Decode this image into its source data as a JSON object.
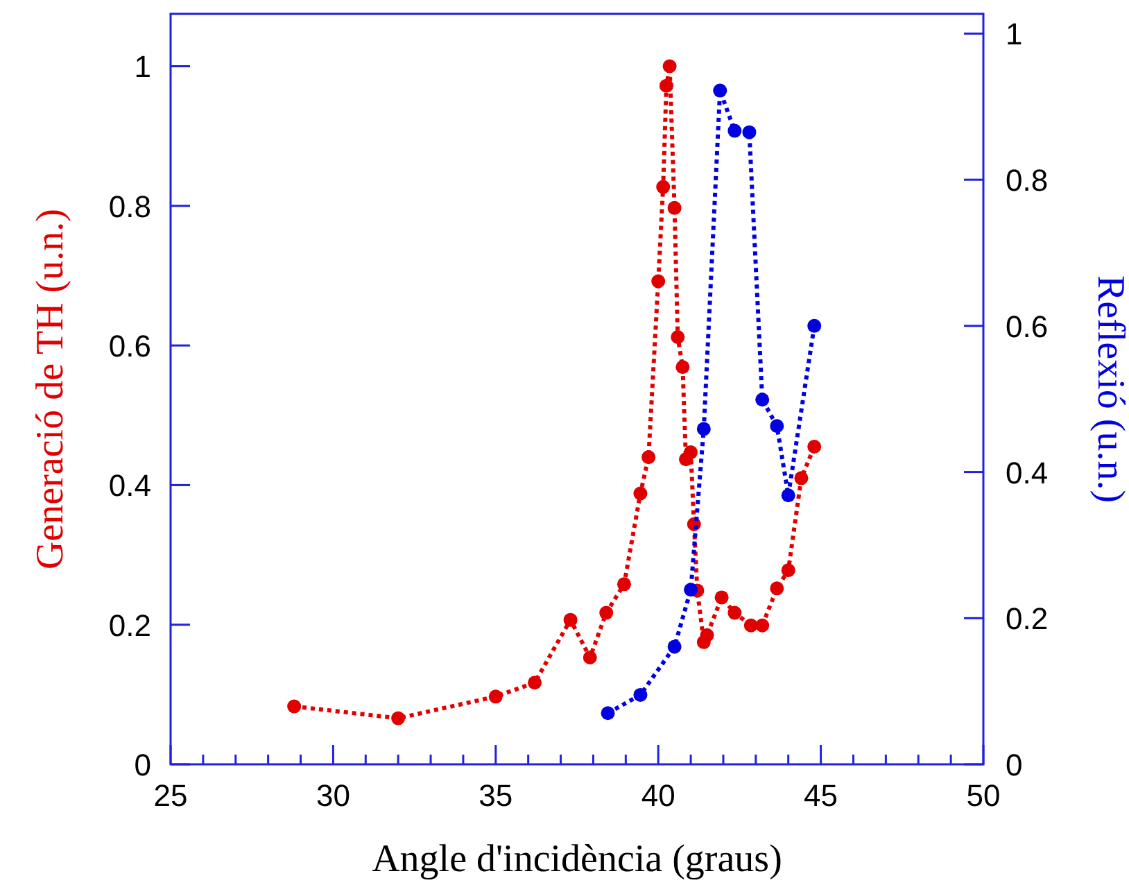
{
  "chart_data": {
    "type": "line",
    "xlabel": "Angle d'incidència (graus)",
    "ylabel": "Generació de TH (u.n.)",
    "y2label": "Reflexió (u.n.)",
    "xlim": [
      25,
      50
    ],
    "xticks": [
      25,
      {
        "value": 26,
        "label": null
      },
      {
        "value": 27,
        "label": null
      },
      {
        "value": 28,
        "label": null
      },
      {
        "value": 29,
        "label": null
      },
      30,
      {
        "value": 31,
        "label": null
      },
      {
        "value": 32,
        "label": null
      },
      {
        "value": 33,
        "label": null
      },
      {
        "value": 34,
        "label": null
      },
      35,
      {
        "value": 36,
        "label": null
      },
      {
        "value": 37,
        "label": null
      },
      {
        "value": 38,
        "label": null
      },
      {
        "value": 39,
        "label": null
      },
      40,
      {
        "value": 41,
        "label": null
      },
      {
        "value": 42,
        "label": null
      },
      {
        "value": 43,
        "label": null
      },
      {
        "value": 44,
        "label": null
      },
      45,
      {
        "value": 46,
        "label": null
      },
      {
        "value": 47,
        "label": null
      },
      {
        "value": 48,
        "label": null
      },
      {
        "value": 49,
        "label": null
      },
      50
    ],
    "ylim": [
      0,
      1.075
    ],
    "yticks": [
      0,
      0.2,
      0.4,
      0.6,
      0.8,
      1
    ],
    "y2lim": [
      0,
      1.027
    ],
    "y2ticks": [
      0,
      0.2,
      0.4,
      0.6,
      0.8,
      1
    ],
    "marker": "circle",
    "line_style": "dotted",
    "grid": false,
    "series": [
      {
        "color": "#e00000",
        "x": [
          28.8,
          32.0,
          35.0,
          36.2,
          37.3,
          37.9,
          38.4,
          38.95,
          39.45,
          39.7,
          40.0,
          40.15,
          40.25,
          40.35,
          40.5,
          40.6,
          40.75,
          40.85,
          41.0,
          41.1,
          41.2,
          41.4,
          41.5,
          41.95,
          42.35,
          42.85,
          43.2,
          43.65,
          44.0,
          44.4,
          44.8
        ],
        "values": [
          0.083,
          0.066,
          0.097,
          0.117,
          0.207,
          0.153,
          0.217,
          0.258,
          0.388,
          0.44,
          0.692,
          0.827,
          0.972,
          1.0,
          0.797,
          0.612,
          0.569,
          0.437,
          0.447,
          0.344,
          0.249,
          0.175,
          0.185,
          0.239,
          0.217,
          0.199,
          0.199,
          0.252,
          0.278,
          0.41,
          0.455
        ]
      },
      {
        "color": "#0000e0",
        "axis": "y2",
        "x": [
          38.45,
          39.45,
          40.5,
          41.0,
          41.4,
          41.9,
          42.35,
          42.8,
          43.2,
          43.65,
          44.0,
          44.8
        ],
        "values": [
          0.07,
          0.095,
          0.161,
          0.239,
          0.459,
          0.922,
          0.867,
          0.865,
          0.499,
          0.463,
          0.368,
          0.6
        ]
      }
    ]
  }
}
